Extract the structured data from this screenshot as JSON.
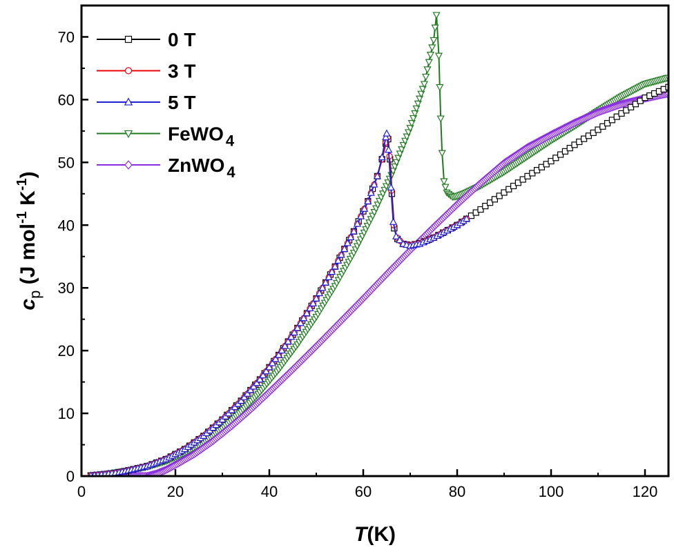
{
  "chart_data": {
    "type": "line",
    "xlabel": {
      "italic": "T",
      "rest": "(K)"
    },
    "ylabel": {
      "italic": "c",
      "sub": "p",
      "rest": " (J mol",
      "sup1": "-1",
      "rest2": " K",
      "sup2": "-1",
      "end": ")"
    },
    "xlim": [
      0,
      125
    ],
    "ylim": [
      0,
      75
    ],
    "xticks": [
      0,
      20,
      40,
      60,
      80,
      100,
      120
    ],
    "yticks": [
      0,
      10,
      20,
      30,
      40,
      50,
      60,
      70
    ],
    "grid": false,
    "legend_position": "top-left",
    "series": [
      {
        "name": "0 T",
        "name_sub": "",
        "color": "#000000",
        "marker": "square",
        "points": [
          [
            2,
            0.1
          ],
          [
            5,
            0.3
          ],
          [
            8,
            0.6
          ],
          [
            10,
            0.9
          ],
          [
            14,
            1.6
          ],
          [
            18,
            2.7
          ],
          [
            22,
            4.3
          ],
          [
            26,
            6.4
          ],
          [
            30,
            9.0
          ],
          [
            34,
            12.0
          ],
          [
            38,
            15.4
          ],
          [
            42,
            19.3
          ],
          [
            46,
            23.6
          ],
          [
            50,
            28.3
          ],
          [
            54,
            33.4
          ],
          [
            58,
            39.0
          ],
          [
            61,
            43.8
          ],
          [
            63,
            47.8
          ],
          [
            64,
            50.5
          ],
          [
            64.8,
            53.0
          ],
          [
            65.3,
            53.7
          ],
          [
            65.7,
            50.5
          ],
          [
            66.1,
            45.0
          ],
          [
            66.6,
            39.5
          ],
          [
            67.3,
            37.8
          ],
          [
            68.5,
            37.0
          ],
          [
            70,
            36.8
          ],
          [
            72,
            37.1
          ],
          [
            75,
            38.0
          ],
          [
            80,
            40.0
          ],
          [
            85,
            42.5
          ],
          [
            90,
            45.2
          ],
          [
            95,
            47.8
          ],
          [
            100,
            50.2
          ],
          [
            105,
            52.8
          ],
          [
            110,
            55.2
          ],
          [
            115,
            57.8
          ],
          [
            120,
            60.3
          ],
          [
            125,
            62.0
          ]
        ]
      },
      {
        "name": "3 T",
        "name_sub": "",
        "color": "#e8000b",
        "marker": "circle",
        "points": [
          [
            2,
            0.1
          ],
          [
            5,
            0.3
          ],
          [
            8,
            0.6
          ],
          [
            10,
            0.9
          ],
          [
            14,
            1.6
          ],
          [
            18,
            2.7
          ],
          [
            22,
            4.3
          ],
          [
            26,
            6.4
          ],
          [
            30,
            9.0
          ],
          [
            34,
            12.0
          ],
          [
            38,
            15.4
          ],
          [
            42,
            19.3
          ],
          [
            46,
            23.6
          ],
          [
            50,
            28.3
          ],
          [
            54,
            33.4
          ],
          [
            58,
            39.0
          ],
          [
            61,
            43.8
          ],
          [
            63,
            47.8
          ],
          [
            64,
            50.5
          ],
          [
            64.8,
            53.2
          ],
          [
            65.2,
            54.0
          ],
          [
            65.6,
            51.0
          ],
          [
            66.0,
            45.5
          ],
          [
            66.5,
            40.0
          ],
          [
            67.2,
            38.0
          ],
          [
            68.5,
            37.0
          ],
          [
            70,
            36.8
          ],
          [
            72,
            37.1
          ],
          [
            75,
            38.0
          ],
          [
            80,
            40.0
          ],
          [
            82,
            41.0
          ]
        ]
      },
      {
        "name": "5 T",
        "name_sub": "",
        "color": "#1f1fd6",
        "marker": "triangle-up",
        "points": [
          [
            2,
            0.1
          ],
          [
            5,
            0.3
          ],
          [
            8,
            0.6
          ],
          [
            10,
            0.9
          ],
          [
            14,
            1.6
          ],
          [
            18,
            2.7
          ],
          [
            22,
            4.3
          ],
          [
            26,
            6.4
          ],
          [
            30,
            9.0
          ],
          [
            34,
            12.0
          ],
          [
            38,
            15.4
          ],
          [
            42,
            19.3
          ],
          [
            46,
            23.6
          ],
          [
            50,
            28.3
          ],
          [
            54,
            33.4
          ],
          [
            58,
            39.0
          ],
          [
            61,
            43.8
          ],
          [
            63,
            47.8
          ],
          [
            64,
            50.8
          ],
          [
            64.8,
            54.0
          ],
          [
            65.0,
            54.6
          ],
          [
            65.4,
            52.0
          ],
          [
            65.9,
            46.0
          ],
          [
            66.4,
            40.5
          ],
          [
            67.0,
            38.2
          ],
          [
            68.5,
            37.0
          ],
          [
            70,
            36.7
          ],
          [
            72,
            37.0
          ],
          [
            75,
            38.0
          ],
          [
            80,
            40.0
          ],
          [
            82,
            41.0
          ]
        ]
      },
      {
        "name": "FeWO",
        "name_sub": "4",
        "color": "#1f7a1f",
        "marker": "triangle-down",
        "points": [
          [
            2,
            0.1
          ],
          [
            6,
            0.4
          ],
          [
            10,
            0.9
          ],
          [
            14,
            1.5
          ],
          [
            18,
            2.4
          ],
          [
            22,
            3.7
          ],
          [
            26,
            5.4
          ],
          [
            30,
            7.6
          ],
          [
            34,
            10.3
          ],
          [
            38,
            13.4
          ],
          [
            42,
            17.0
          ],
          [
            46,
            21.0
          ],
          [
            50,
            25.4
          ],
          [
            54,
            30.3
          ],
          [
            58,
            35.6
          ],
          [
            62,
            41.5
          ],
          [
            66,
            48.0
          ],
          [
            70,
            55.5
          ],
          [
            73,
            62.5
          ],
          [
            75,
            69.5
          ],
          [
            75.6,
            73.5
          ],
          [
            76.1,
            67.0
          ],
          [
            76.3,
            62.0
          ],
          [
            76.5,
            57.0
          ],
          [
            76.8,
            51.5
          ],
          [
            77.2,
            47.0
          ],
          [
            77.8,
            45.2
          ],
          [
            79,
            44.5
          ],
          [
            80,
            44.6
          ],
          [
            82,
            45.2
          ],
          [
            85,
            46.3
          ],
          [
            90,
            48.5
          ],
          [
            95,
            51.0
          ],
          [
            100,
            53.5
          ],
          [
            105,
            55.8
          ],
          [
            110,
            58.2
          ],
          [
            115,
            60.5
          ],
          [
            120,
            62.5
          ],
          [
            125,
            63.5
          ]
        ]
      },
      {
        "name": "ZnWO",
        "name_sub": "4",
        "color": "#8b2be2",
        "marker": "diamond",
        "points": [
          [
            2,
            0.0
          ],
          [
            6,
            0.0
          ],
          [
            10,
            0.0
          ],
          [
            13,
            0.0
          ],
          [
            14,
            0.0
          ],
          [
            16,
            0.4
          ],
          [
            18,
            1.0
          ],
          [
            20,
            1.8
          ],
          [
            24,
            3.5
          ],
          [
            28,
            5.6
          ],
          [
            32,
            8.0
          ],
          [
            36,
            10.6
          ],
          [
            40,
            13.4
          ],
          [
            45,
            17.0
          ],
          [
            50,
            20.7
          ],
          [
            55,
            24.5
          ],
          [
            60,
            28.3
          ],
          [
            65,
            32.2
          ],
          [
            70,
            36.0
          ],
          [
            75,
            39.7
          ],
          [
            80,
            43.3
          ],
          [
            85,
            46.7
          ],
          [
            90,
            49.9
          ],
          [
            95,
            52.4
          ],
          [
            100,
            54.4
          ],
          [
            105,
            56.3
          ],
          [
            110,
            58.0
          ],
          [
            115,
            59.3
          ],
          [
            120,
            60.2
          ],
          [
            125,
            61.0
          ]
        ]
      }
    ]
  }
}
